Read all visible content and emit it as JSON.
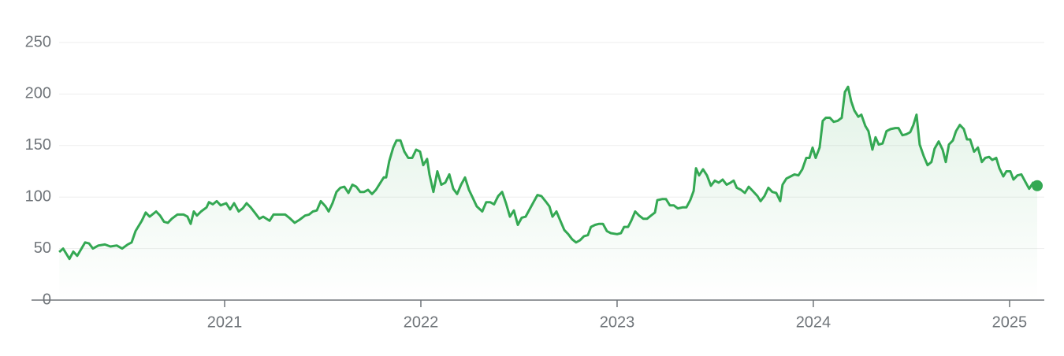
{
  "chart_data": {
    "type": "line",
    "color": "#34a853",
    "grid": true,
    "xlim": [
      2020.016,
      2025.177
    ],
    "xticks": [
      2021,
      2022,
      2023,
      2024,
      2025
    ],
    "ylim": [
      0,
      250
    ],
    "yticks": [
      0,
      50,
      100,
      150,
      200,
      250
    ],
    "x": [
      2020.157,
      2020.177,
      2020.209,
      2020.229,
      2020.249,
      2020.289,
      2020.309,
      2020.329,
      2020.357,
      2020.39,
      2020.418,
      2020.45,
      2020.478,
      2020.506,
      2020.526,
      2020.546,
      2020.578,
      2020.598,
      2020.618,
      2020.651,
      2020.671,
      2020.691,
      2020.711,
      2020.731,
      2020.759,
      2020.791,
      2020.811,
      2020.827,
      2020.843,
      2020.859,
      2020.88,
      2020.908,
      2020.92,
      2020.94,
      2020.96,
      2020.98,
      2021.008,
      2021.028,
      2021.048,
      2021.072,
      2021.092,
      2021.112,
      2021.133,
      2021.157,
      2021.177,
      2021.197,
      2021.229,
      2021.249,
      2021.269,
      2021.309,
      2021.329,
      2021.357,
      2021.382,
      2021.41,
      2021.43,
      2021.45,
      2021.47,
      2021.49,
      2021.514,
      2021.53,
      2021.55,
      2021.57,
      2021.59,
      2021.61,
      2021.631,
      2021.651,
      2021.671,
      2021.691,
      2021.711,
      2021.731,
      2021.751,
      2021.771,
      2021.791,
      2021.811,
      2021.823,
      2021.839,
      2021.859,
      2021.876,
      2021.896,
      2021.916,
      2021.936,
      2021.956,
      2021.976,
      2021.996,
      2022.012,
      2022.032,
      2022.044,
      2022.064,
      2022.084,
      2022.104,
      2022.124,
      2022.145,
      2022.165,
      2022.185,
      2022.205,
      2022.225,
      2022.245,
      2022.265,
      2022.285,
      2022.313,
      2022.333,
      2022.353,
      2022.373,
      2022.394,
      2022.414,
      2022.434,
      2022.454,
      2022.474,
      2022.494,
      2022.514,
      2022.534,
      2022.554,
      2022.574,
      2022.594,
      2022.614,
      2022.635,
      2022.655,
      2022.671,
      2022.691,
      2022.711,
      2022.731,
      2022.751,
      2022.771,
      2022.791,
      2022.811,
      2022.831,
      2022.851,
      2022.867,
      2022.888,
      2022.908,
      2022.928,
      2022.948,
      2022.968,
      2023.0,
      2023.02,
      2023.036,
      2023.056,
      2023.072,
      2023.092,
      2023.112,
      2023.133,
      2023.153,
      2023.173,
      2023.193,
      2023.205,
      2023.229,
      2023.249,
      2023.269,
      2023.289,
      2023.309,
      2023.333,
      2023.353,
      2023.373,
      2023.39,
      2023.402,
      2023.418,
      2023.438,
      2023.458,
      2023.478,
      2023.498,
      2023.518,
      2023.538,
      2023.558,
      2023.578,
      2023.594,
      2023.61,
      2023.631,
      2023.651,
      2023.671,
      2023.691,
      2023.715,
      2023.731,
      2023.751,
      2023.771,
      2023.791,
      2023.811,
      2023.831,
      2023.843,
      2023.863,
      2023.884,
      2023.904,
      2023.924,
      2023.944,
      2023.964,
      2023.98,
      2023.996,
      2024.012,
      2024.032,
      2024.048,
      2024.064,
      2024.084,
      2024.104,
      2024.124,
      2024.145,
      2024.161,
      2024.177,
      2024.193,
      2024.209,
      2024.229,
      2024.245,
      2024.265,
      2024.281,
      2024.301,
      2024.317,
      2024.333,
      2024.353,
      2024.373,
      2024.394,
      2024.418,
      2024.434,
      2024.454,
      2024.474,
      2024.494,
      2024.51,
      2024.526,
      2024.542,
      2024.562,
      2024.582,
      2024.602,
      2024.618,
      2024.639,
      2024.659,
      2024.675,
      2024.691,
      2024.711,
      2024.727,
      2024.747,
      2024.767,
      2024.783,
      2024.799,
      2024.819,
      2024.839,
      2024.859,
      2024.876,
      2024.896,
      2024.912,
      2024.932,
      2024.948,
      2024.968,
      2024.984,
      2025.004,
      2025.02,
      2025.04,
      2025.06,
      2025.08,
      2025.1,
      2025.12,
      2025.141
    ],
    "values": [
      46.6,
      50,
      40,
      47,
      43,
      56,
      55,
      50,
      53,
      54,
      52,
      53,
      50,
      54,
      56,
      67,
      77,
      85,
      81,
      86,
      82,
      76,
      75,
      79,
      83,
      83,
      81,
      74,
      86,
      82,
      86,
      90,
      95,
      93,
      96,
      92,
      94,
      88,
      94,
      86,
      89,
      94,
      90,
      84,
      79,
      81,
      77,
      83,
      83,
      83,
      80,
      75,
      78,
      82,
      83,
      86,
      87,
      96,
      91,
      86,
      94,
      105,
      109,
      110,
      104,
      112,
      110,
      105,
      105,
      107,
      103,
      107,
      113,
      119,
      119,
      135,
      148,
      155,
      155,
      144,
      138,
      138,
      146,
      144,
      131,
      137,
      122,
      105,
      125,
      112,
      114,
      122,
      108,
      103,
      112,
      119,
      107,
      99,
      91,
      86,
      95,
      95,
      93,
      101,
      105,
      94,
      81,
      87,
      73,
      80,
      81,
      88,
      95,
      102,
      101,
      96,
      91,
      81,
      86,
      77,
      68,
      64,
      59,
      56,
      58,
      62,
      63,
      71,
      73,
      74,
      74,
      67,
      65,
      64,
      65,
      71,
      71,
      77,
      86,
      82,
      79,
      79,
      82,
      85,
      97,
      98,
      98,
      92,
      92,
      89,
      90,
      90,
      97,
      106,
      128,
      121,
      127,
      121,
      111,
      116,
      114,
      117,
      112,
      114,
      116,
      109,
      107,
      104,
      110,
      106,
      101,
      96,
      101,
      109,
      105,
      104,
      96,
      112,
      118,
      120,
      122,
      121,
      127,
      138,
      138,
      148,
      138,
      148,
      174,
      177,
      177,
      173,
      174,
      177,
      202,
      207,
      193,
      184,
      178,
      180,
      169,
      164,
      146,
      158,
      151,
      152,
      164,
      166,
      167,
      167,
      160,
      161,
      163,
      170,
      180,
      151,
      140,
      131,
      134,
      147,
      154,
      146,
      134,
      151,
      155,
      164,
      170,
      166,
      156,
      156,
      144,
      148,
      134,
      138,
      139,
      136,
      138,
      128,
      120,
      125,
      125,
      117,
      121,
      122,
      115,
      108,
      114,
      111
    ]
  }
}
